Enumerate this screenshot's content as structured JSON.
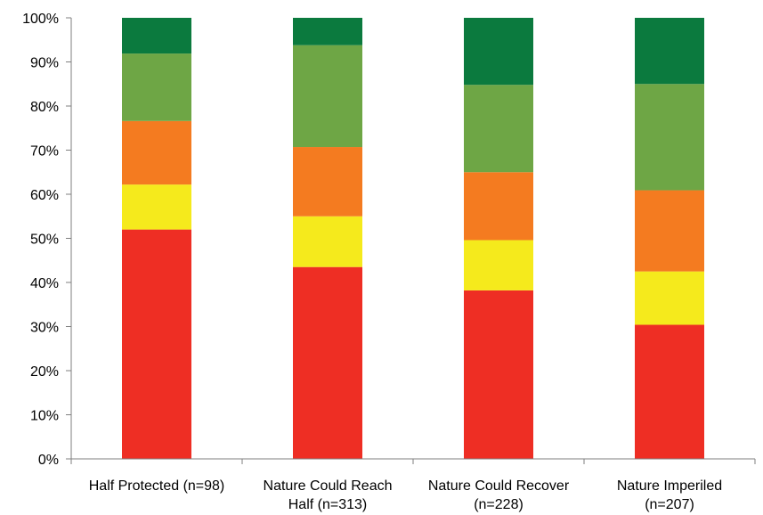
{
  "chart_data": {
    "type": "bar",
    "stacked": true,
    "percent": true,
    "title": "",
    "xlabel": "",
    "ylabel": "",
    "ylim": [
      0,
      100
    ],
    "yticks": [
      "0%",
      "10%",
      "20%",
      "30%",
      "40%",
      "50%",
      "60%",
      "70%",
      "80%",
      "90%",
      "100%"
    ],
    "grid": false,
    "legend": "none",
    "categories": [
      [
        "Half Protected (n=98)"
      ],
      [
        "Nature Could Reach",
        "Half (n=313)"
      ],
      [
        "Nature Could Recover",
        "(n=228)"
      ],
      [
        "Nature Imperiled",
        "(n=207)"
      ]
    ],
    "series": [
      {
        "color": "#ee2e24",
        "values": [
          52,
          43.5,
          38.2,
          30.4
        ]
      },
      {
        "color": "#f5ea1c",
        "values": [
          10.2,
          11.5,
          11.4,
          12.1
        ]
      },
      {
        "color": "#f47b20",
        "values": [
          14.4,
          15.7,
          15.4,
          18.4
        ]
      },
      {
        "color": "#6ea645",
        "values": [
          15.3,
          23.1,
          19.8,
          24.1
        ]
      },
      {
        "color": "#0b7a3e",
        "values": [
          8.1,
          6.2,
          15.2,
          15.0
        ]
      }
    ]
  }
}
